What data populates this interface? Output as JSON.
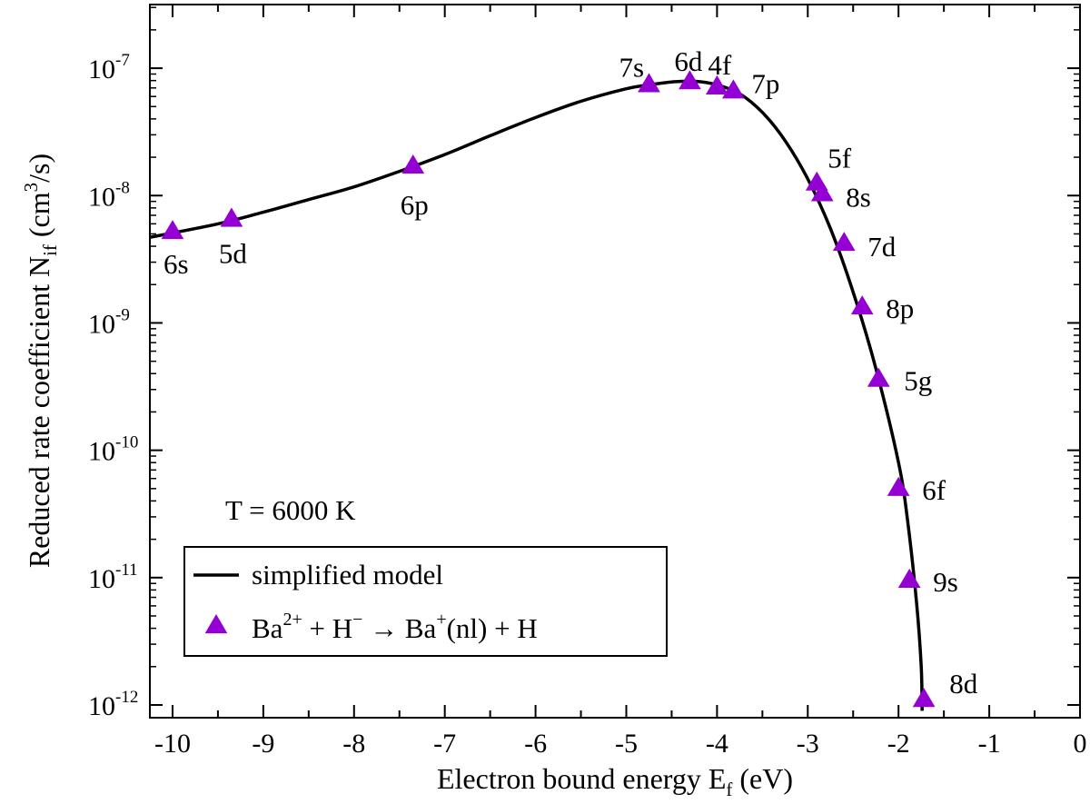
{
  "chart_data": {
    "type": "line",
    "title": "",
    "annotation": "T = 6000 K",
    "xlabel": {
      "main": "Electron bound energy E",
      "sub": "f",
      "tail": " (eV)"
    },
    "ylabel": {
      "main": "Reduced rate coefficient N",
      "sub": "if",
      "mid": " (cm",
      "sup": "3",
      "tail": "/s)"
    },
    "xlim": [
      -10.25,
      0
    ],
    "ylim_log10": [
      -12.1,
      -6.5
    ],
    "y_scale": "log",
    "grid": false,
    "legend_position": "bottom-left",
    "x_ticks": [
      "-10",
      "-9",
      "-8",
      "-7",
      "-6",
      "-5",
      "-4",
      "-3",
      "-2",
      "-1",
      "0"
    ],
    "y_ticks": [
      {
        "base": "10",
        "exp": "-12"
      },
      {
        "base": "10",
        "exp": "-11"
      },
      {
        "base": "10",
        "exp": "-10"
      },
      {
        "base": "10",
        "exp": "-9"
      },
      {
        "base": "10",
        "exp": "-8"
      },
      {
        "base": "10",
        "exp": "-7"
      }
    ],
    "series": [
      {
        "legend": "simplified model",
        "style": "line",
        "color": "#000000",
        "x": [
          -10.25,
          -9.5,
          -9.0,
          -8.5,
          -8.0,
          -7.5,
          -7.0,
          -6.5,
          -6.0,
          -5.5,
          -5.0,
          -4.75,
          -4.5,
          -4.25,
          -4.0,
          -3.75,
          -3.5,
          -3.25,
          -3.0,
          -2.75,
          -2.5,
          -2.25,
          -2.0,
          -1.9,
          -1.8,
          -1.75,
          -1.74
        ],
        "y": [
          4.7e-09,
          6e-09,
          7.4e-09,
          9.3e-09,
          1.17e-08,
          1.55e-08,
          2.1e-08,
          2.95e-08,
          4.1e-08,
          5.5e-08,
          6.9e-08,
          7.4e-08,
          7.8e-08,
          7.9e-08,
          7.4e-08,
          6.3e-08,
          4.5e-08,
          2.7e-08,
          1.35e-08,
          5.5e-09,
          1.75e-09,
          4.4e-10,
          8e-11,
          2.8e-11,
          6.2e-12,
          2e-12,
          9e-13
        ]
      },
      {
        "legend_parts": [
          "Ba",
          "2+",
          " + H",
          "−",
          "  → Ba",
          "+",
          "(nl) + H"
        ],
        "style": "triangle",
        "color": "#9400D3",
        "points": [
          {
            "label": "6s",
            "x": -10.0,
            "y": 5.2e-09
          },
          {
            "label": "5d",
            "x": -9.35,
            "y": 6.5e-09
          },
          {
            "label": "6p",
            "x": -7.35,
            "y": 1.7e-08
          },
          {
            "label": "7s",
            "x": -4.75,
            "y": 7.4e-08
          },
          {
            "label": "6d",
            "x": -4.3,
            "y": 7.8e-08
          },
          {
            "label": "4f",
            "x": -4.0,
            "y": 7.1e-08
          },
          {
            "label": "7p",
            "x": -3.82,
            "y": 6.6e-08
          },
          {
            "label": "5f",
            "x": -2.9,
            "y": 1.25e-08
          },
          {
            "label": "8s",
            "x": -2.84,
            "y": 1.03e-08
          },
          {
            "label": "7d",
            "x": -2.6,
            "y": 4.2e-09
          },
          {
            "label": "8p",
            "x": -2.4,
            "y": 1.33e-09
          },
          {
            "label": "5g",
            "x": -2.22,
            "y": 3.6e-10
          },
          {
            "label": "6f",
            "x": -2.0,
            "y": 5e-11
          },
          {
            "label": "9s",
            "x": -1.88,
            "y": 9.5e-12
          },
          {
            "label": "8d",
            "x": -1.72,
            "y": 1.1e-12
          }
        ]
      }
    ]
  }
}
